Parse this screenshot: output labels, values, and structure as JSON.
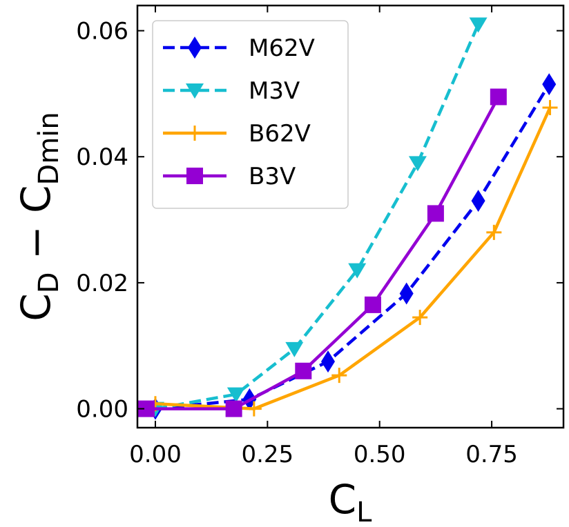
{
  "chart_data": {
    "type": "line",
    "title": "",
    "xlabel": {
      "main": "C",
      "sub": "L"
    },
    "ylabel": {
      "part1": "C",
      "sub1": "D",
      "minus": " − ",
      "part2": "C",
      "sub2": "Dmin"
    },
    "xlim": [
      -0.04,
      0.91
    ],
    "ylim": [
      -0.003,
      0.064
    ],
    "xticks": [
      0.0,
      0.25,
      0.5,
      0.75
    ],
    "xtick_labels": [
      "0.00",
      "0.25",
      "0.50",
      "0.75"
    ],
    "yticks": [
      0.0,
      0.02,
      0.04,
      0.06
    ],
    "ytick_labels": [
      "0.00",
      "0.02",
      "0.04",
      "0.06"
    ],
    "grid": false,
    "legend_position": "top-left",
    "series": [
      {
        "name": "M62V",
        "color": "#0000ee",
        "linestyle": "dashed",
        "marker": "diamond",
        "x": [
          0.0,
          0.21,
          0.385,
          0.56,
          0.72,
          0.878
        ],
        "y": [
          0.0,
          0.0015,
          0.0075,
          0.0183,
          0.033,
          0.0515
        ]
      },
      {
        "name": "M3V",
        "color": "#17becf",
        "linestyle": "dashed",
        "marker": "triangle-down",
        "x": [
          0.0,
          0.18,
          0.31,
          0.45,
          0.585,
          0.72
        ],
        "y": [
          0.0,
          0.0023,
          0.0095,
          0.022,
          0.039,
          0.061
        ]
      },
      {
        "name": "B62V",
        "color": "#ffa500",
        "linestyle": "solid",
        "marker": "plus",
        "x": [
          0.0,
          0.22,
          0.41,
          0.59,
          0.755,
          0.88
        ],
        "y": [
          0.0008,
          0.0,
          0.0053,
          0.0145,
          0.028,
          0.0478
        ]
      },
      {
        "name": "B3V",
        "color": "#9400d3",
        "linestyle": "solid",
        "marker": "square",
        "x": [
          -0.02,
          0.175,
          0.33,
          0.485,
          0.625,
          0.765
        ],
        "y": [
          0.0,
          0.0,
          0.006,
          0.0165,
          0.031,
          0.0495
        ]
      }
    ]
  }
}
